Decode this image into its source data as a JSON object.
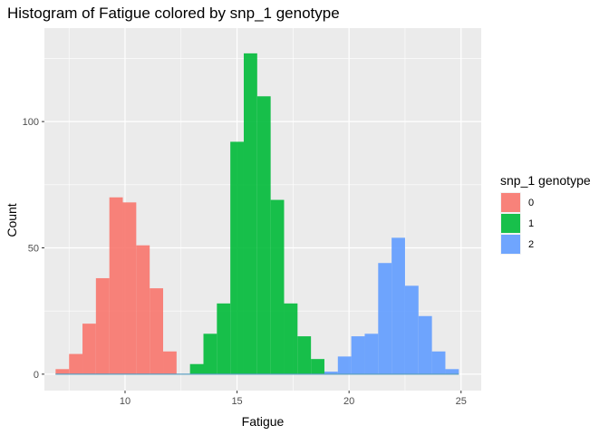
{
  "chart_data": {
    "type": "bar",
    "title": "Histogram of Fatigue colored by snp_1 genotype",
    "xlabel": "Fatigue",
    "ylabel": "Count",
    "xlim": [
      6.4,
      25.9
    ],
    "ylim": [
      -6.5,
      137
    ],
    "x_ticks": [
      10,
      15,
      20,
      25
    ],
    "x_tick_labels": [
      "10",
      "15",
      "20",
      "25"
    ],
    "y_ticks": [
      0,
      50,
      100
    ],
    "y_tick_labels": [
      "0",
      "50",
      "100"
    ],
    "grid": true,
    "bin_width": 0.6,
    "legend": {
      "title": "snp_1 genotype",
      "position": "right",
      "entries": [
        "0",
        "1",
        "2"
      ]
    },
    "series": [
      {
        "name": "0",
        "color": "#F8766D",
        "bins": [
          {
            "x": 7.2,
            "count": 2
          },
          {
            "x": 7.8,
            "count": 8
          },
          {
            "x": 8.4,
            "count": 20
          },
          {
            "x": 9.0,
            "count": 38
          },
          {
            "x": 9.6,
            "count": 70
          },
          {
            "x": 10.2,
            "count": 68
          },
          {
            "x": 10.8,
            "count": 51
          },
          {
            "x": 11.4,
            "count": 34
          },
          {
            "x": 12.0,
            "count": 9
          }
        ]
      },
      {
        "name": "1",
        "color": "#00BA38",
        "bins": [
          {
            "x": 13.2,
            "count": 4
          },
          {
            "x": 13.8,
            "count": 16
          },
          {
            "x": 14.4,
            "count": 28
          },
          {
            "x": 15.0,
            "count": 92
          },
          {
            "x": 15.6,
            "count": 127
          },
          {
            "x": 16.2,
            "count": 110
          },
          {
            "x": 16.8,
            "count": 69
          },
          {
            "x": 17.4,
            "count": 28
          },
          {
            "x": 18.0,
            "count": 15
          },
          {
            "x": 18.6,
            "count": 6
          }
        ]
      },
      {
        "name": "2",
        "color": "#619CFF",
        "bins": [
          {
            "x": 19.2,
            "count": 1
          },
          {
            "x": 19.8,
            "count": 7
          },
          {
            "x": 20.4,
            "count": 15
          },
          {
            "x": 21.0,
            "count": 16
          },
          {
            "x": 21.6,
            "count": 44
          },
          {
            "x": 22.2,
            "count": 54
          },
          {
            "x": 22.8,
            "count": 35
          },
          {
            "x": 23.4,
            "count": 23
          },
          {
            "x": 24.0,
            "count": 9
          },
          {
            "x": 24.6,
            "count": 2
          }
        ]
      }
    ]
  }
}
